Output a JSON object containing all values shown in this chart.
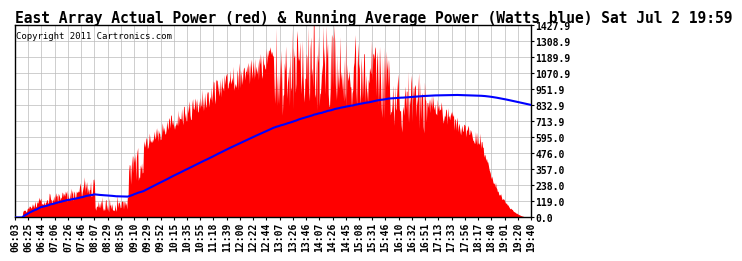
{
  "title": "East Array Actual Power (red) & Running Average Power (Watts blue) Sat Jul 2 19:59",
  "copyright": "Copyright 2011 Cartronics.com",
  "yticks": [
    0.0,
    119.0,
    238.0,
    357.0,
    476.0,
    595.0,
    713.9,
    832.9,
    951.9,
    1070.9,
    1189.9,
    1308.9,
    1427.9
  ],
  "ylim": [
    0.0,
    1427.9
  ],
  "xtick_labels": [
    "06:03",
    "06:25",
    "06:44",
    "07:06",
    "07:26",
    "07:46",
    "08:07",
    "08:29",
    "08:50",
    "09:10",
    "09:29",
    "09:52",
    "10:15",
    "10:35",
    "10:55",
    "11:18",
    "11:39",
    "12:00",
    "12:22",
    "12:44",
    "13:07",
    "13:26",
    "13:46",
    "14:07",
    "14:26",
    "14:45",
    "15:08",
    "15:31",
    "15:46",
    "16:10",
    "16:32",
    "16:51",
    "17:13",
    "17:33",
    "17:56",
    "18:17",
    "18:40",
    "19:01",
    "19:20",
    "19:40"
  ],
  "bg_color": "#ffffff",
  "fill_color": "#ff0000",
  "line_color": "#0000ff",
  "grid_color": "#bbbbbb",
  "title_fontsize": 10.5,
  "tick_fontsize": 7,
  "copyright_fontsize": 6.5
}
